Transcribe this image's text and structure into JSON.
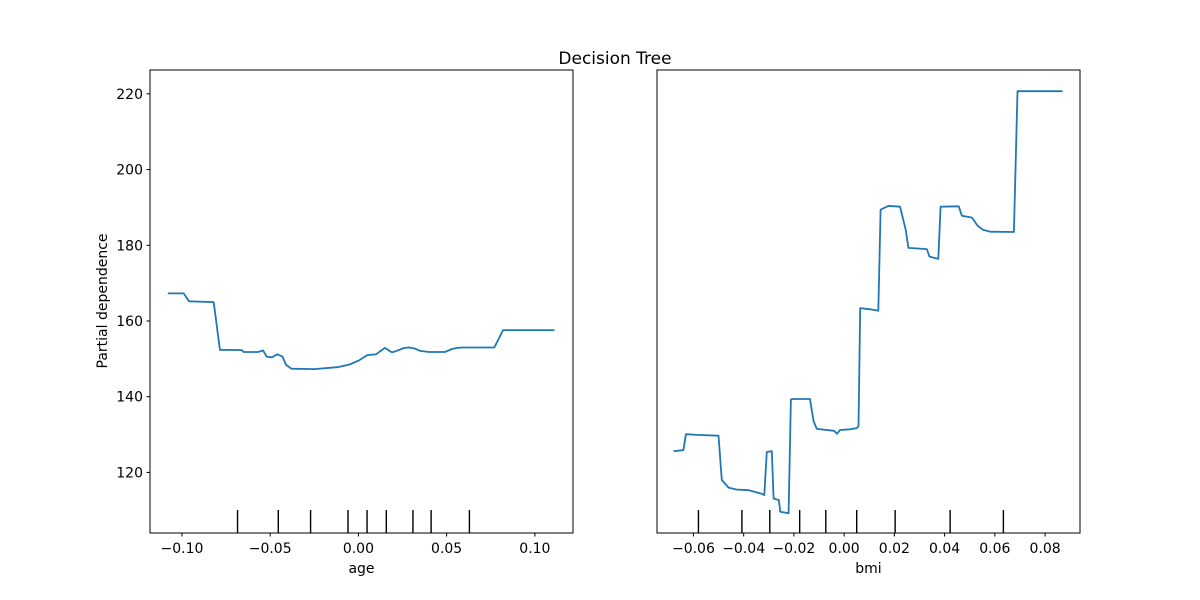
{
  "figure": {
    "title": "Decision Tree",
    "ylabel": "Partial dependence",
    "background": "#ffffff",
    "line_color": "#1f77b4",
    "axis_color": "#000000",
    "text_color": "#000000",
    "grid": false,
    "legend": "none",
    "ylim": [
      104.0,
      226.3
    ],
    "yticks": [
      120,
      140,
      160,
      180,
      200,
      220
    ],
    "ytick_labels": [
      "120",
      "140",
      "160",
      "180",
      "200",
      "220"
    ]
  },
  "chart_data": [
    {
      "type": "line",
      "xlabel": "age",
      "xlim": [
        -0.1181,
        0.1216
      ],
      "xticks": [
        -0.1,
        -0.05,
        0.0,
        0.05,
        0.1
      ],
      "xtick_labels": [
        "−0.10",
        "−0.05",
        "0.00",
        "0.05",
        "0.10"
      ],
      "x": [
        -0.1076,
        -0.099,
        -0.096,
        -0.082,
        -0.0785,
        -0.066,
        -0.065,
        -0.057,
        -0.054,
        -0.052,
        -0.049,
        -0.046,
        -0.043,
        -0.041,
        -0.038,
        -0.025,
        -0.012,
        -0.005,
        0.0,
        0.005,
        0.01,
        0.012,
        0.015,
        0.019,
        0.021,
        0.026,
        0.029,
        0.032,
        0.035,
        0.04,
        0.049,
        0.053,
        0.056,
        0.059,
        0.077,
        0.082,
        0.1107
      ],
      "y": [
        167.3,
        167.3,
        165.2,
        165.0,
        152.4,
        152.3,
        151.8,
        151.8,
        152.2,
        150.6,
        150.4,
        151.2,
        150.6,
        148.4,
        147.4,
        147.3,
        147.8,
        148.5,
        149.5,
        151.0,
        151.2,
        151.9,
        152.9,
        151.7,
        152.0,
        152.9,
        153.0,
        152.7,
        152.1,
        151.8,
        151.8,
        152.6,
        152.9,
        153.0,
        153.0,
        157.6,
        157.6
      ],
      "deciles": [
        -0.0685,
        -0.0454,
        -0.0271,
        -0.0059,
        0.0049,
        0.0158,
        0.0309,
        0.0412,
        0.0629
      ]
    },
    {
      "type": "line",
      "xlabel": "bmi",
      "xlim": [
        -0.0745,
        0.0939
      ],
      "xticks": [
        -0.06,
        -0.04,
        -0.02,
        0.0,
        0.02,
        0.04,
        0.06,
        0.08
      ],
      "xtick_labels": [
        "−0.06",
        "−0.04",
        "−0.02",
        "0.00",
        "0.02",
        "0.04",
        "0.06",
        "0.08"
      ],
      "x": [
        -0.0676,
        -0.064,
        -0.063,
        -0.0586,
        -0.05,
        -0.0487,
        -0.046,
        -0.043,
        -0.038,
        -0.033,
        -0.0318,
        -0.0308,
        -0.0288,
        -0.0281,
        -0.026,
        -0.0254,
        -0.0221,
        -0.0212,
        -0.02,
        -0.0136,
        -0.0122,
        -0.0109,
        -0.004,
        -0.0029,
        -0.0016,
        0.0024,
        0.005,
        0.0057,
        0.0064,
        0.0104,
        0.0136,
        0.0145,
        0.0176,
        0.0223,
        0.0245,
        0.0256,
        0.0329,
        0.034,
        0.0375,
        0.0384,
        0.0456,
        0.0469,
        0.0509,
        0.0531,
        0.0553,
        0.0582,
        0.0676,
        0.069,
        0.0867
      ],
      "y": [
        125.6,
        125.9,
        130.1,
        129.9,
        129.7,
        118.0,
        116.0,
        115.5,
        115.3,
        114.4,
        114.0,
        125.4,
        125.6,
        113.1,
        112.7,
        109.6,
        109.2,
        139.3,
        139.4,
        139.4,
        133.6,
        131.5,
        131.0,
        130.2,
        131.2,
        131.4,
        131.7,
        132.2,
        163.4,
        163.1,
        162.7,
        189.4,
        190.4,
        190.2,
        184.1,
        179.3,
        179.0,
        177.0,
        176.4,
        190.2,
        190.3,
        187.8,
        187.3,
        185.2,
        184.1,
        183.6,
        183.5,
        220.7,
        220.7
      ],
      "deciles": [
        -0.058,
        -0.0407,
        -0.0296,
        -0.0177,
        -0.0073,
        0.005,
        0.0203,
        0.0422,
        0.0634
      ]
    }
  ]
}
